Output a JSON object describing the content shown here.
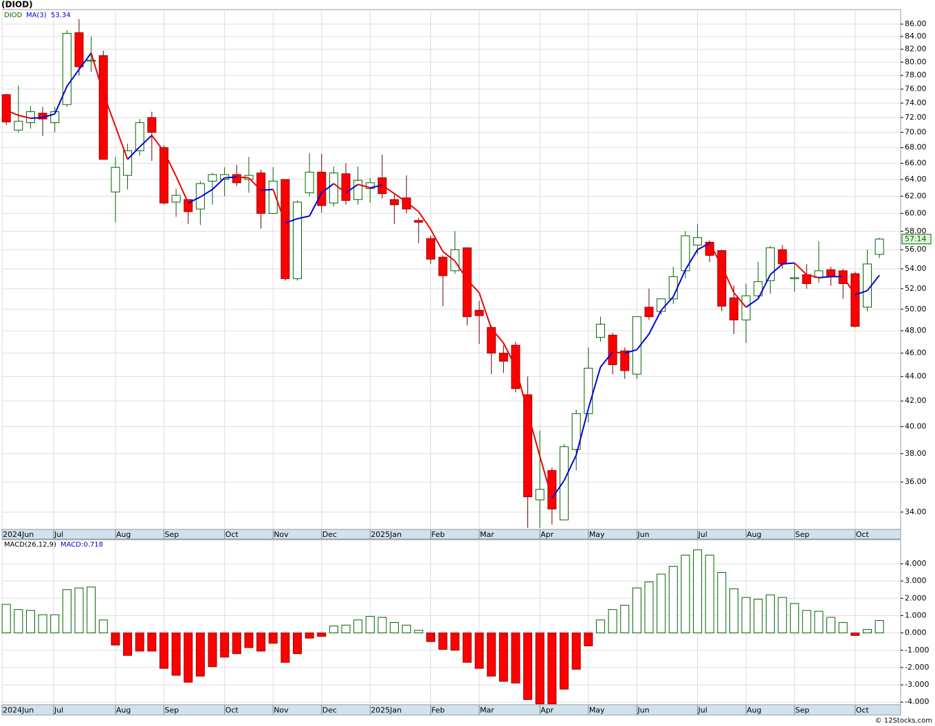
{
  "title": "(DIOD)",
  "footer": "© 12Stocks.com",
  "chart_data": [
    {
      "type": "candlestick",
      "symbol": "DIOD",
      "log_scale": true,
      "grid": true,
      "up_color": "#006400",
      "down_color": "#ff0000",
      "open": [
        75.2,
        70.3,
        71.3,
        72.6,
        71.3,
        73.8,
        84.6,
        80.2,
        81.0,
        62.5,
        64.5,
        67.6,
        72.0,
        68.0,
        61.3,
        61.6,
        60.5,
        63.8,
        64.0,
        64.6,
        64.0,
        64.8,
        60.0,
        64.0,
        53.0,
        62.4,
        64.9,
        61.2,
        64.7,
        61.6,
        62.9,
        64.2,
        61.6,
        61.8,
        59.2,
        57.2,
        55.2,
        53.8,
        56.2,
        49.9,
        48.3,
        46.0,
        46.7,
        42.5,
        34.8,
        36.8,
        33.5,
        38.3,
        41.0,
        47.4,
        47.6,
        46.2,
        44.2,
        50.2,
        49.8,
        51.0,
        53.8,
        56.5,
        56.8,
        55.9,
        51.1,
        49.0,
        51.3,
        52.8,
        56.0,
        53.0,
        53.4,
        53.1,
        53.9,
        53.8,
        53.5,
        50.2,
        55.5
      ],
      "high": [
        75.3,
        76.5,
        73.6,
        73.5,
        73.5,
        85.0,
        86.8,
        84.0,
        81.8,
        66.8,
        68.5,
        71.8,
        72.8,
        68.3,
        62.9,
        61.5,
        63.8,
        64.8,
        65.5,
        65.8,
        66.8,
        65.2,
        65.5,
        64.0,
        61.5,
        67.3,
        67.2,
        65.6,
        66.0,
        65.6,
        64.2,
        67.1,
        62.2,
        64.5,
        59.5,
        57.5,
        55.4,
        58.0,
        56.2,
        50.8,
        48.5,
        46.7,
        47.0,
        44.0,
        39.7,
        37.0,
        38.7,
        41.3,
        46.5,
        49.3,
        47.8,
        46.5,
        49.3,
        52.0,
        51.0,
        54.2,
        58.0,
        58.8,
        57.0,
        56.0,
        52.3,
        52.5,
        54.7,
        56.4,
        56.5,
        54.6,
        54.5,
        56.9,
        54.2,
        54.0,
        53.7,
        56.0,
        57.3
      ],
      "low": [
        71.0,
        70.0,
        70.5,
        69.5,
        70.0,
        73.5,
        78.0,
        78.5,
        66.5,
        59.0,
        62.8,
        67.0,
        66.3,
        61.0,
        59.6,
        58.8,
        58.7,
        61.0,
        62.0,
        63.2,
        62.4,
        58.3,
        60.0,
        52.8,
        52.8,
        62.0,
        60.1,
        60.8,
        61.0,
        61.0,
        61.2,
        61.7,
        58.8,
        60.0,
        56.7,
        54.5,
        50.3,
        53.5,
        48.5,
        46.8,
        44.2,
        44.3,
        42.7,
        33.0,
        33.0,
        33.2,
        33.5,
        36.8,
        40.3,
        47.0,
        44.2,
        43.8,
        43.8,
        49.0,
        49.5,
        50.5,
        53.0,
        55.5,
        54.7,
        49.8,
        47.7,
        46.9,
        51.0,
        51.5,
        54.0,
        51.7,
        52.0,
        52.6,
        52.3,
        51.0,
        48.3,
        49.8,
        55.1
      ],
      "close": [
        71.4,
        71.5,
        72.8,
        71.8,
        72.8,
        84.5,
        79.3,
        80.3,
        66.5,
        65.5,
        67.6,
        71.3,
        70.0,
        61.2,
        62.1,
        60.2,
        63.5,
        64.6,
        64.6,
        63.6,
        64.5,
        60.0,
        63.8,
        53.0,
        61.3,
        64.9,
        60.9,
        64.8,
        61.5,
        63.9,
        63.6,
        62.3,
        61.0,
        60.5,
        59.0,
        55.0,
        53.3,
        56.0,
        49.3,
        49.4,
        46.0,
        45.3,
        43.0,
        35.0,
        35.5,
        34.2,
        38.5,
        41.0,
        44.7,
        48.6,
        45.0,
        44.5,
        49.3,
        49.3,
        51.0,
        53.2,
        57.5,
        57.3,
        55.4,
        50.3,
        49.0,
        51.3,
        52.7,
        56.2,
        54.5,
        53.1,
        52.5,
        53.8,
        53.2,
        52.5,
        48.4,
        54.5,
        57.14
      ],
      "close_label": "57.14",
      "ma": {
        "name": "MA(3)",
        "up_color": "#0000dd",
        "down_color": "#ee0000",
        "value_label": "53.34",
        "values": [
          73.0,
          72.3,
          71.9,
          72.0,
          72.5,
          76.4,
          78.9,
          81.4,
          75.4,
          70.8,
          66.5,
          68.1,
          69.6,
          67.5,
          64.4,
          61.2,
          61.9,
          62.8,
          64.2,
          64.3,
          64.2,
          62.7,
          62.8,
          58.9,
          59.4,
          59.7,
          62.4,
          63.5,
          62.4,
          63.4,
          63.0,
          63.3,
          62.3,
          61.3,
          60.2,
          58.2,
          55.8,
          54.8,
          52.9,
          51.6,
          48.2,
          46.9,
          44.8,
          41.1,
          37.8,
          34.9,
          36.1,
          37.9,
          41.4,
          44.8,
          46.1,
          46.0,
          46.3,
          47.7,
          49.9,
          51.2,
          53.9,
          56.0,
          56.7,
          54.3,
          51.6,
          50.2,
          51.0,
          53.4,
          54.5,
          54.6,
          53.4,
          53.1,
          53.2,
          53.2,
          51.4,
          51.8,
          53.34
        ]
      },
      "xlim": [
        -0.35,
        73.75
      ],
      "ylim": [
        32.9,
        88.4
      ],
      "xticks": [
        {
          "value": -0.35,
          "label": "2024Jun"
        },
        {
          "value": 3.9,
          "label": "Jul"
        },
        {
          "value": 9.0,
          "label": "Aug"
        },
        {
          "value": 13.0,
          "label": "Sep"
        },
        {
          "value": 18.0,
          "label": "Oct"
        },
        {
          "value": 22.0,
          "label": "Nov"
        },
        {
          "value": 26.0,
          "label": "Dec"
        },
        {
          "value": 30.0,
          "label": "2025Jan"
        },
        {
          "value": 35.0,
          "label": "Feb"
        },
        {
          "value": 39.0,
          "label": "Mar"
        },
        {
          "value": 44.0,
          "label": "Apr"
        },
        {
          "value": 48.0,
          "label": "May"
        },
        {
          "value": 52.0,
          "label": "Jun"
        },
        {
          "value": 57.0,
          "label": "Jul"
        },
        {
          "value": 61.0,
          "label": "Aug"
        },
        {
          "value": 65.0,
          "label": "Sep"
        },
        {
          "value": 70.0,
          "label": "Oct"
        }
      ],
      "yticks": [
        {
          "value": 34,
          "label": "34.00"
        },
        {
          "value": 36,
          "label": "36.00"
        },
        {
          "value": 38,
          "label": "38.00"
        },
        {
          "value": 40,
          "label": "40.00"
        },
        {
          "value": 42,
          "label": "42.00"
        },
        {
          "value": 44,
          "label": "44.00"
        },
        {
          "value": 46,
          "label": "46.00"
        },
        {
          "value": 48,
          "label": "48.00"
        },
        {
          "value": 50,
          "label": "50.00"
        },
        {
          "value": 52,
          "label": "52.00"
        },
        {
          "value": 54,
          "label": "54.00"
        },
        {
          "value": 56,
          "label": "56.00"
        },
        {
          "value": 58,
          "label": "58.00"
        },
        {
          "value": 60,
          "label": "60.00"
        },
        {
          "value": 62,
          "label": "62.00"
        },
        {
          "value": 64,
          "label": "64.00"
        },
        {
          "value": 66,
          "label": "66.00"
        },
        {
          "value": 68,
          "label": "68.00"
        },
        {
          "value": 70,
          "label": "70.00"
        },
        {
          "value": 72,
          "label": "72.00"
        },
        {
          "value": 74,
          "label": "74.00"
        },
        {
          "value": 76,
          "label": "76.00"
        },
        {
          "value": 78,
          "label": "78.00"
        },
        {
          "value": 80,
          "label": "80.00"
        },
        {
          "value": 82,
          "label": "82.00"
        },
        {
          "value": 84,
          "label": "84.00"
        },
        {
          "value": 86,
          "label": "86.00"
        }
      ]
    },
    {
      "type": "bar",
      "grid": true,
      "up_color": "#006400",
      "down_color": "#ff0000",
      "series": [
        {
          "name": "MACD(26,12,9)",
          "value_label": "MACD:0.718",
          "values": [
            1.65,
            1.35,
            1.3,
            1.05,
            1.05,
            2.5,
            2.6,
            2.65,
            0.75,
            -0.7,
            -1.3,
            -1.05,
            -1.05,
            -2.05,
            -2.45,
            -2.85,
            -2.5,
            -1.95,
            -1.4,
            -1.2,
            -0.85,
            -1.05,
            -0.6,
            -1.7,
            -1.2,
            -0.3,
            -0.2,
            0.4,
            0.45,
            0.75,
            0.95,
            0.9,
            0.6,
            0.45,
            0.15,
            -0.5,
            -0.95,
            -1.0,
            -1.7,
            -2.05,
            -2.5,
            -2.8,
            -2.9,
            -3.85,
            -4.1,
            -4.1,
            -3.25,
            -2.1,
            -0.75,
            0.75,
            1.35,
            1.6,
            2.6,
            2.95,
            3.4,
            3.85,
            4.5,
            4.8,
            4.5,
            3.5,
            2.55,
            2.05,
            1.95,
            2.2,
            2.05,
            1.7,
            1.3,
            1.25,
            0.9,
            0.6,
            -0.15,
            0.2,
            0.718
          ]
        }
      ],
      "xlim": [
        -0.35,
        73.75
      ],
      "ylim": [
        -4.15,
        5.39
      ],
      "xticks": [
        {
          "value": -0.35,
          "label": "2024Jun"
        },
        {
          "value": 3.9,
          "label": "Jul"
        },
        {
          "value": 9.0,
          "label": "Aug"
        },
        {
          "value": 13.0,
          "label": "Sep"
        },
        {
          "value": 18.0,
          "label": "Oct"
        },
        {
          "value": 22.0,
          "label": "Nov"
        },
        {
          "value": 26.0,
          "label": "Dec"
        },
        {
          "value": 30.0,
          "label": "2025Jan"
        },
        {
          "value": 35.0,
          "label": "Feb"
        },
        {
          "value": 39.0,
          "label": "Mar"
        },
        {
          "value": 44.0,
          "label": "Apr"
        },
        {
          "value": 48.0,
          "label": "May"
        },
        {
          "value": 52.0,
          "label": "Jun"
        },
        {
          "value": 57.0,
          "label": "Jul"
        },
        {
          "value": 61.0,
          "label": "Aug"
        },
        {
          "value": 65.0,
          "label": "Sep"
        },
        {
          "value": 70.0,
          "label": "Oct"
        }
      ],
      "yticks": [
        {
          "value": -4,
          "label": "-4.000"
        },
        {
          "value": -3,
          "label": "-3.000"
        },
        {
          "value": -2,
          "label": "-2.000"
        },
        {
          "value": -1,
          "label": "-1.000"
        },
        {
          "value": 0,
          "label": "0.000"
        },
        {
          "value": 1,
          "label": "1.000"
        },
        {
          "value": 2,
          "label": "2.000"
        },
        {
          "value": 3,
          "label": "3.000"
        },
        {
          "value": 4,
          "label": "4.000"
        }
      ]
    }
  ]
}
